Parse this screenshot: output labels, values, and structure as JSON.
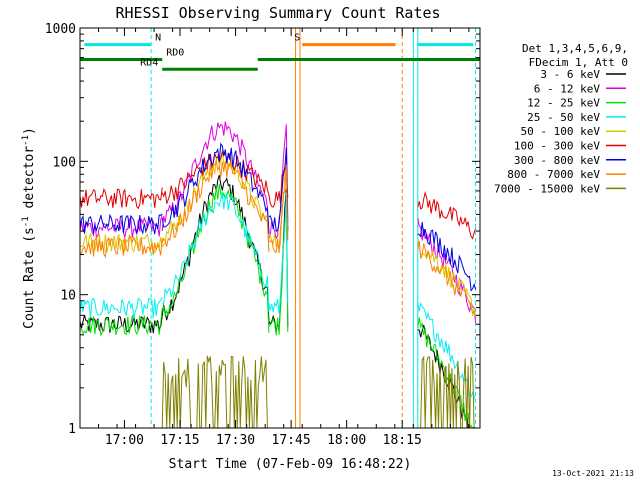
{
  "chart_data": {
    "type": "line",
    "title": "RHESSI Observing Summary Count Rates",
    "xlabel": "Start Time (07-Feb-09 16:48:22)",
    "ylabel_parts": [
      "Count Rate (s",
      "-1",
      " detector",
      "-1",
      ")"
    ],
    "xlim": [
      16.8,
      18.6
    ],
    "ylim": [
      1,
      1000
    ],
    "ylog": true,
    "grid": false,
    "x_ticks": [
      {
        "v": 17.0,
        "label": "17:00"
      },
      {
        "v": 17.25,
        "label": "17:15"
      },
      {
        "v": 17.5,
        "label": "17:30"
      },
      {
        "v": 17.75,
        "label": "17:45"
      },
      {
        "v": 18.0,
        "label": "18:00"
      },
      {
        "v": 18.25,
        "label": "18:15"
      }
    ],
    "y_ticks": [
      {
        "v": 1,
        "label": "1"
      },
      {
        "v": 10,
        "label": "10"
      },
      {
        "v": 100,
        "label": "100"
      },
      {
        "v": 1000,
        "label": "1000"
      }
    ],
    "legend_placement": "top-right",
    "legend_header": [
      "Det 1,3,4,5,6,9,",
      "FDecim 1, Att 0"
    ],
    "series": [
      {
        "name": "3 - 6 keV",
        "color": "#000000",
        "level": 6,
        "dev": 3.5
      },
      {
        "name": "6 - 12 keV",
        "color": "#e000e0",
        "level": 32,
        "dev": 2.5
      },
      {
        "name": "12 - 25 keV",
        "color": "#00e000",
        "level": 6,
        "dev": 3.3
      },
      {
        "name": "25 - 50 keV",
        "color": "#00f0f0",
        "level": 8,
        "dev": 2.7
      },
      {
        "name": "50 - 100 keV",
        "color": "#d8c800",
        "level": 25,
        "dev": 2.0
      },
      {
        "name": "100 - 300 keV",
        "color": "#e00000",
        "level": 53,
        "dev": 1.0
      },
      {
        "name": "300 - 800 keV",
        "color": "#0000e0",
        "level": 34,
        "dev": 1.8
      },
      {
        "name": "800 - 7000 keV",
        "color": "#ff8000",
        "level": 23,
        "dev": 2.0
      },
      {
        "name": "7000 - 15000 keV",
        "color": "#808000",
        "level": 2.5,
        "dev": 1.0
      }
    ],
    "segments": [
      [
        16.8,
        17.17
      ],
      [
        17.17,
        17.65
      ],
      [
        17.65,
        17.735
      ],
      [
        18.32,
        18.58
      ]
    ],
    "flags": [
      {
        "label": "N",
        "color": "#00e8e8",
        "y": 750,
        "spans": [
          [
            16.82,
            17.12
          ],
          [
            18.32,
            18.57
          ]
        ]
      },
      {
        "label": "S",
        "color": "#ff8000",
        "y": 750,
        "spans": [
          [
            17.8,
            18.22
          ]
        ]
      },
      {
        "label": "RD0",
        "color": "#008000",
        "y": 580,
        "spans": [
          [
            16.8,
            17.17
          ],
          [
            17.6,
            18.6
          ]
        ]
      },
      {
        "label": "RD4",
        "color": "#008000",
        "y": 490,
        "spans": [
          [
            17.17,
            17.6
          ]
        ]
      }
    ],
    "vlines": [
      {
        "x": 16.8,
        "color": "#00e8e8",
        "style": "solid"
      },
      {
        "x": 17.12,
        "color": "#00e8e8",
        "style": "dashed"
      },
      {
        "x": 17.77,
        "color": "#ff8000",
        "style": "solid"
      },
      {
        "x": 17.79,
        "color": "#ff8000",
        "style": "solid"
      },
      {
        "x": 18.25,
        "color": "#ff8000",
        "style": "dashed"
      },
      {
        "x": 18.3,
        "color": "#00e8e8",
        "style": "solid"
      },
      {
        "x": 18.32,
        "color": "#00e8e8",
        "style": "solid"
      },
      {
        "x": 18.58,
        "color": "#00e8e8",
        "style": "dashed"
      }
    ]
  },
  "footer": {
    "timestamp": "13-Oct-2021 21:13"
  }
}
